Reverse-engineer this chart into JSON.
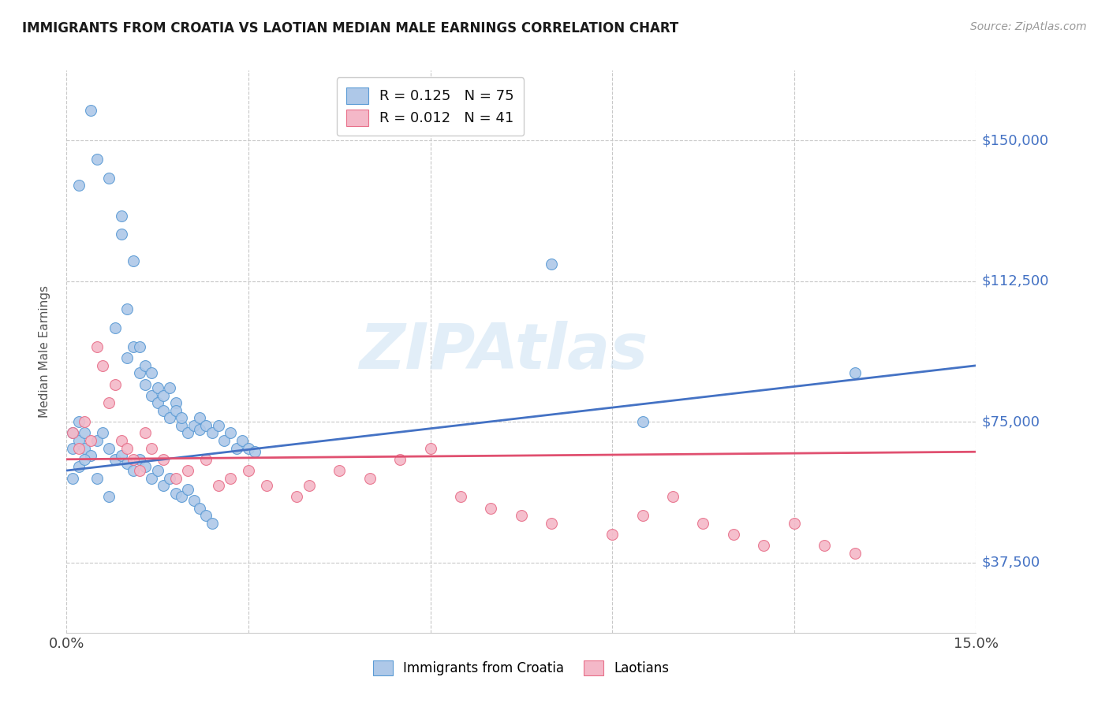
{
  "title": "IMMIGRANTS FROM CROATIA VS LAOTIAN MEDIAN MALE EARNINGS CORRELATION CHART",
  "source": "Source: ZipAtlas.com",
  "ylabel": "Median Male Earnings",
  "xlim": [
    0.0,
    0.15
  ],
  "ylim": [
    18750,
    168750
  ],
  "yticks": [
    37500,
    75000,
    112500,
    150000
  ],
  "ytick_labels": [
    "$37,500",
    "$75,000",
    "$112,500",
    "$150,000"
  ],
  "xticks": [
    0.0,
    0.03,
    0.06,
    0.09,
    0.12,
    0.15
  ],
  "blue_R": 0.125,
  "blue_N": 75,
  "pink_R": 0.012,
  "pink_N": 41,
  "blue_color": "#aec8e8",
  "pink_color": "#f4b8c8",
  "blue_edge_color": "#5b9bd5",
  "pink_edge_color": "#e8708a",
  "blue_line_color": "#4472c4",
  "pink_line_color": "#e05070",
  "legend_label_blue": "Immigrants from Croatia",
  "legend_label_pink": "Laotians",
  "watermark": "ZIPAtlas",
  "background_color": "#ffffff",
  "grid_color": "#c8c8c8",
  "title_color": "#1a1a1a",
  "axis_label_color": "#555555",
  "ytick_color": "#4472c4",
  "blue_scatter_x": [
    0.002,
    0.004,
    0.005,
    0.007,
    0.008,
    0.009,
    0.009,
    0.01,
    0.01,
    0.011,
    0.011,
    0.012,
    0.012,
    0.013,
    0.013,
    0.014,
    0.014,
    0.015,
    0.015,
    0.016,
    0.016,
    0.017,
    0.017,
    0.018,
    0.018,
    0.019,
    0.019,
    0.02,
    0.021,
    0.022,
    0.022,
    0.023,
    0.024,
    0.025,
    0.026,
    0.027,
    0.028,
    0.029,
    0.03,
    0.031,
    0.001,
    0.001,
    0.002,
    0.002,
    0.003,
    0.003,
    0.004,
    0.005,
    0.006,
    0.007,
    0.008,
    0.009,
    0.01,
    0.011,
    0.012,
    0.013,
    0.014,
    0.015,
    0.016,
    0.017,
    0.018,
    0.019,
    0.02,
    0.021,
    0.022,
    0.023,
    0.024,
    0.001,
    0.002,
    0.003,
    0.005,
    0.007,
    0.08,
    0.095,
    0.13
  ],
  "blue_scatter_y": [
    138000,
    158000,
    145000,
    140000,
    100000,
    130000,
    125000,
    105000,
    92000,
    118000,
    95000,
    88000,
    95000,
    85000,
    90000,
    82000,
    88000,
    84000,
    80000,
    82000,
    78000,
    84000,
    76000,
    80000,
    78000,
    74000,
    76000,
    72000,
    74000,
    73000,
    76000,
    74000,
    72000,
    74000,
    70000,
    72000,
    68000,
    70000,
    68000,
    67000,
    72000,
    68000,
    75000,
    70000,
    72000,
    68000,
    66000,
    70000,
    72000,
    68000,
    65000,
    66000,
    64000,
    62000,
    65000,
    63000,
    60000,
    62000,
    58000,
    60000,
    56000,
    55000,
    57000,
    54000,
    52000,
    50000,
    48000,
    60000,
    63000,
    65000,
    60000,
    55000,
    117000,
    75000,
    88000
  ],
  "pink_scatter_x": [
    0.001,
    0.002,
    0.003,
    0.004,
    0.005,
    0.006,
    0.007,
    0.008,
    0.009,
    0.01,
    0.011,
    0.012,
    0.013,
    0.014,
    0.016,
    0.018,
    0.02,
    0.023,
    0.025,
    0.027,
    0.03,
    0.033,
    0.038,
    0.04,
    0.045,
    0.05,
    0.055,
    0.06,
    0.065,
    0.07,
    0.075,
    0.08,
    0.09,
    0.095,
    0.1,
    0.105,
    0.11,
    0.115,
    0.12,
    0.125,
    0.13
  ],
  "pink_scatter_y": [
    72000,
    68000,
    75000,
    70000,
    95000,
    90000,
    80000,
    85000,
    70000,
    68000,
    65000,
    62000,
    72000,
    68000,
    65000,
    60000,
    62000,
    65000,
    58000,
    60000,
    62000,
    58000,
    55000,
    58000,
    62000,
    60000,
    65000,
    68000,
    55000,
    52000,
    50000,
    48000,
    45000,
    50000,
    55000,
    48000,
    45000,
    42000,
    48000,
    42000,
    40000
  ],
  "blue_trend_x": [
    0.0,
    0.15
  ],
  "blue_trend_y": [
    62000,
    90000
  ],
  "pink_trend_x": [
    0.0,
    0.15
  ],
  "pink_trend_y": [
    65000,
    67000
  ]
}
